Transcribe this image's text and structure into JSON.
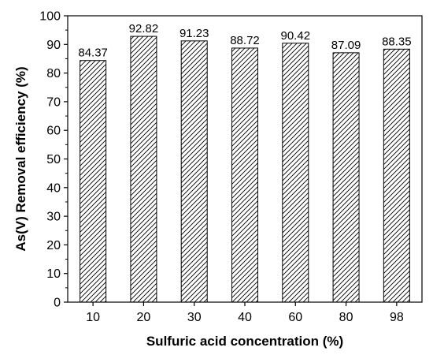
{
  "chart_data": {
    "type": "bar",
    "categories": [
      "10",
      "20",
      "30",
      "40",
      "60",
      "80",
      "98"
    ],
    "values": [
      84.37,
      92.82,
      91.23,
      88.72,
      90.42,
      87.09,
      88.35
    ],
    "data_labels": [
      "84.37",
      "92.82",
      "91.23",
      "88.72",
      "90.42",
      "87.09",
      "88.35"
    ],
    "title": "",
    "xlabel": "Sulfuric acid concentration (%)",
    "ylabel": "As(V) Removal efficiency (%)",
    "ylim": [
      0,
      100
    ],
    "yticks": [
      0,
      10,
      20,
      30,
      40,
      50,
      60,
      70,
      80,
      90,
      100
    ],
    "grid": false,
    "legend": "none",
    "bar_fill": "diagonal-hatch",
    "colors": {
      "bar_edge": "#000000",
      "hatch": "#000000",
      "background": "#ffffff"
    }
  }
}
